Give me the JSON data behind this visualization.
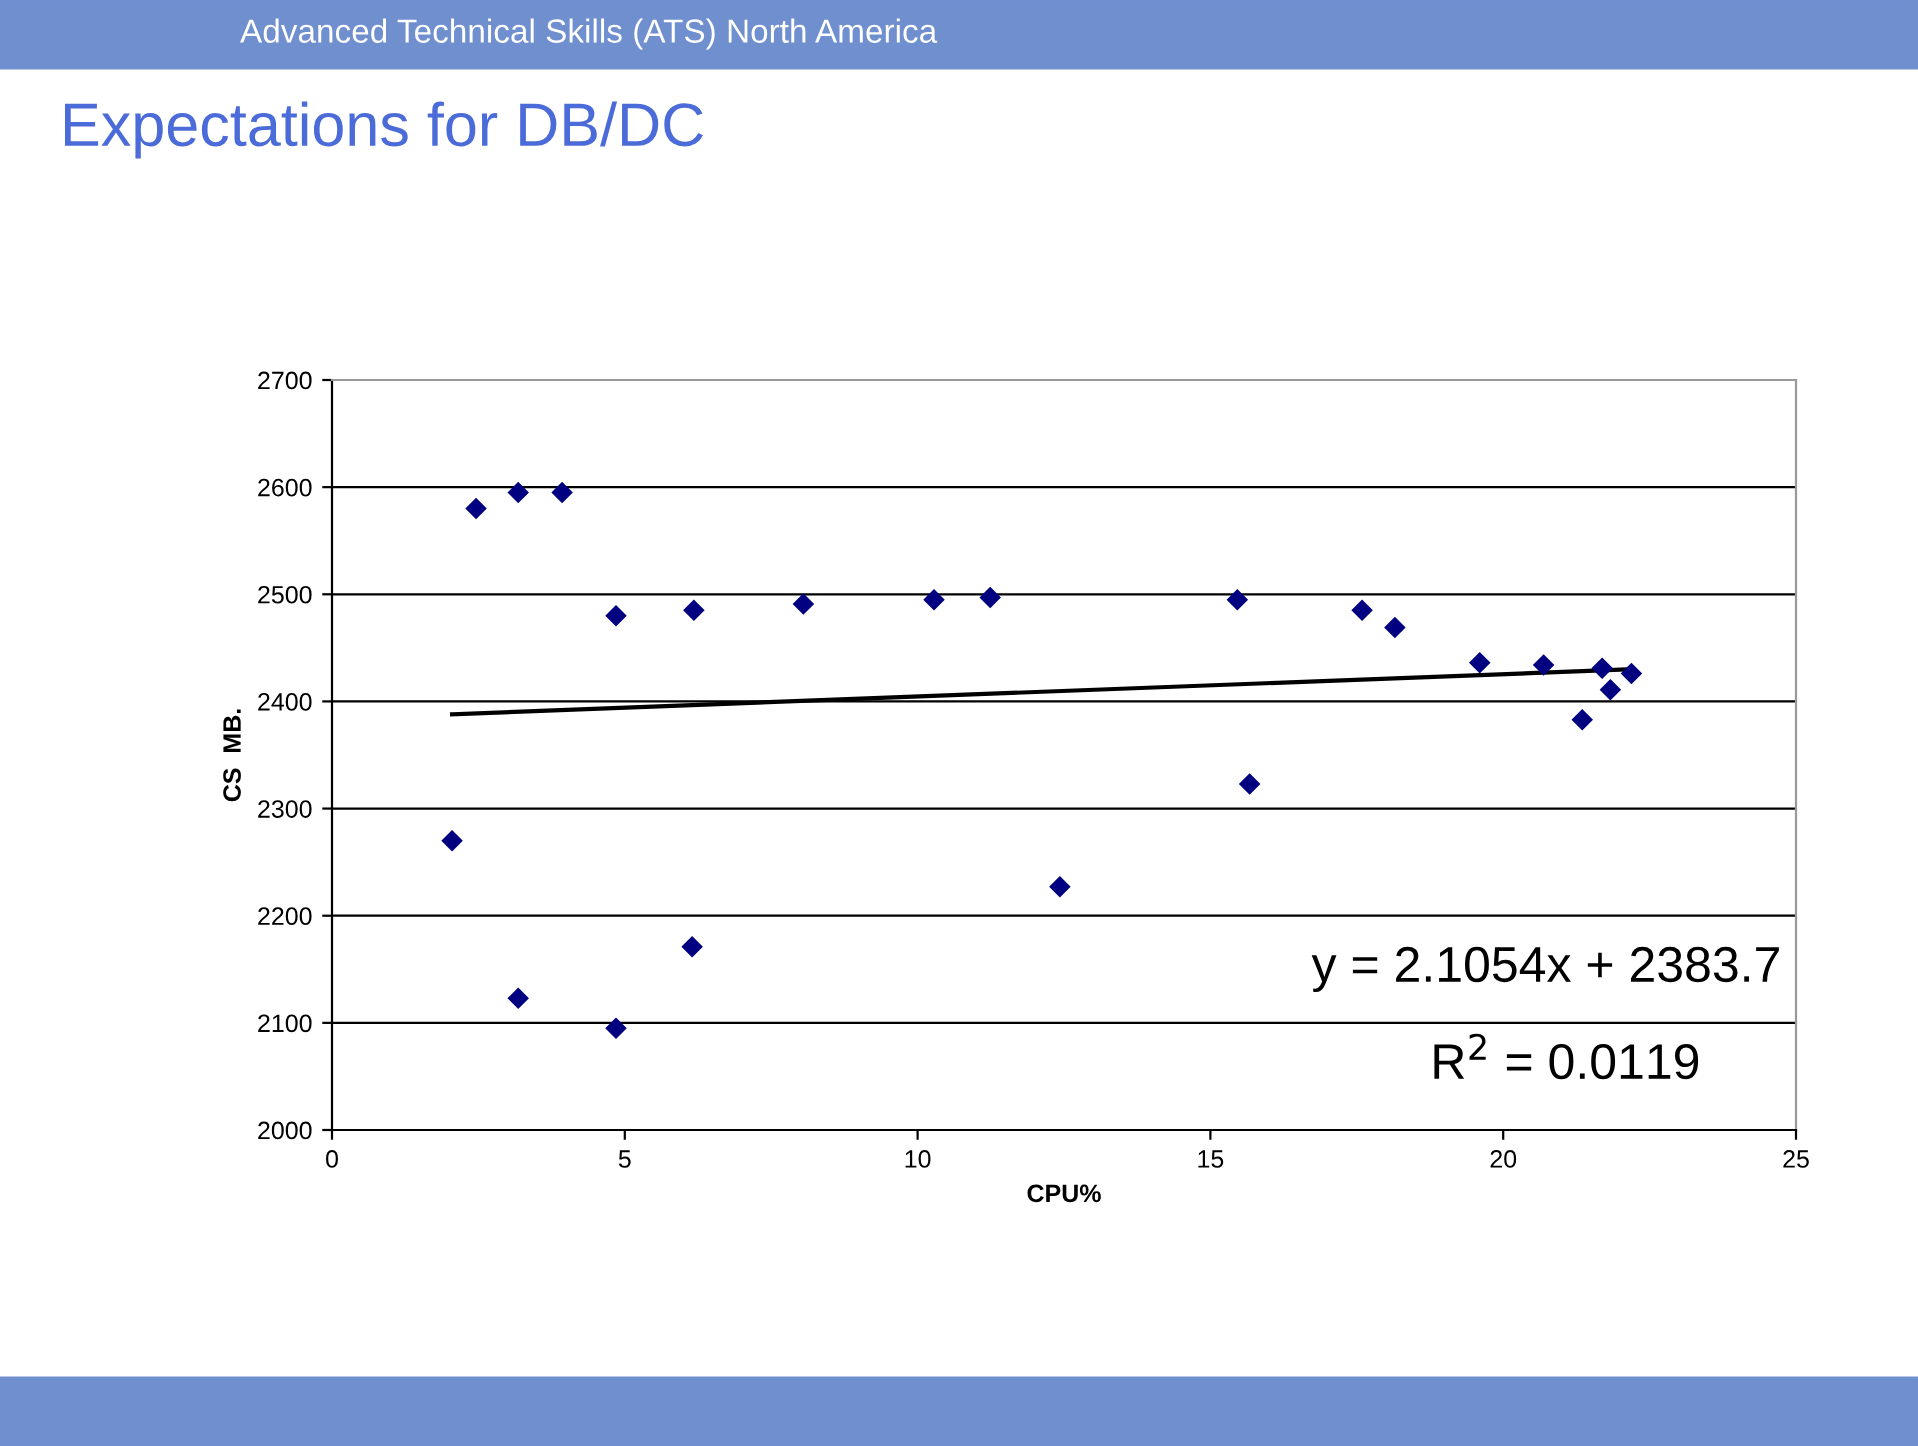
{
  "chart_data": {
    "type": "scatter",
    "title": "Expectations for DB/DC",
    "xlabel": "CPU%",
    "ylabel": "CS  MB.",
    "annotations": [
      "Advanced Technical Skills (ATS) North America",
      "y = 2.1054x + 2383.7",
      "R$^{2}$ = 0.0119"
    ],
    "series": [
      {
        "color": "#000080",
        "marker": "diamond",
        "x": [
          2.05,
          2.46,
          3.18,
          3.93,
          3.18,
          4.85,
          4.85,
          6.18,
          6.15,
          8.05,
          10.28,
          11.24,
          12.43,
          15.46,
          15.67,
          17.59,
          18.15,
          19.6,
          20.69,
          21.69,
          21.35,
          21.83,
          22.19
        ],
        "values": [
          2270,
          2580,
          2595,
          2595,
          2123,
          2480,
          2095,
          2485,
          2171,
          2491,
          2495,
          2497,
          2227,
          2495,
          2323,
          2485,
          2469,
          2436,
          2434,
          2431,
          2383,
          2411,
          2426
        ]
      },
      {
        "type": "line",
        "color": "#000000",
        "marker": "none",
        "line_style": "solid",
        "x": [
          2.05,
          22.19
        ],
        "values": [
          2388,
          2430
        ]
      }
    ],
    "xlim": [
      0,
      25
    ],
    "xticks": [
      0,
      5,
      10,
      15,
      20,
      25
    ],
    "ylim": [
      2000,
      2700
    ],
    "yticks": [
      2000,
      2100,
      2200,
      2300,
      2400,
      2500,
      2600,
      2700
    ],
    "grid": "y",
    "legend": false
  }
}
